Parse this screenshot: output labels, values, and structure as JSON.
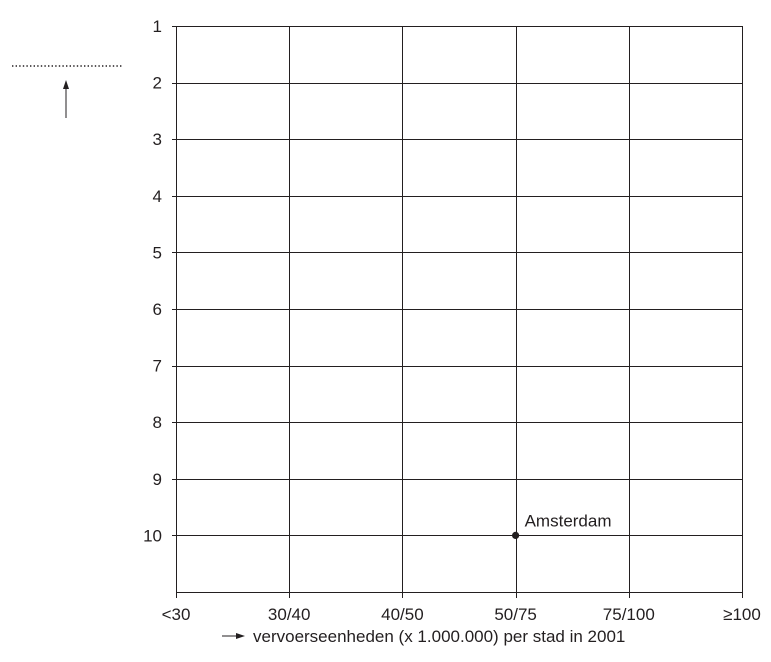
{
  "chart_data": {
    "type": "scatter",
    "x_categories": [
      "<30",
      "30/40",
      "40/50",
      "50/75",
      "75/100",
      "≥100"
    ],
    "y_ticks": [
      "1",
      "2",
      "3",
      "4",
      "5",
      "6",
      "7",
      "8",
      "9",
      "10"
    ],
    "ylim": [
      1,
      11
    ],
    "y_inverted": true,
    "grid": true,
    "xlabel": "vervoerseenheden (x 1.000.000) per stad in 2001",
    "ylabel": "",
    "title": "",
    "points": [
      {
        "x": "50/75",
        "y": 10,
        "label": "Amsterdam"
      }
    ]
  }
}
